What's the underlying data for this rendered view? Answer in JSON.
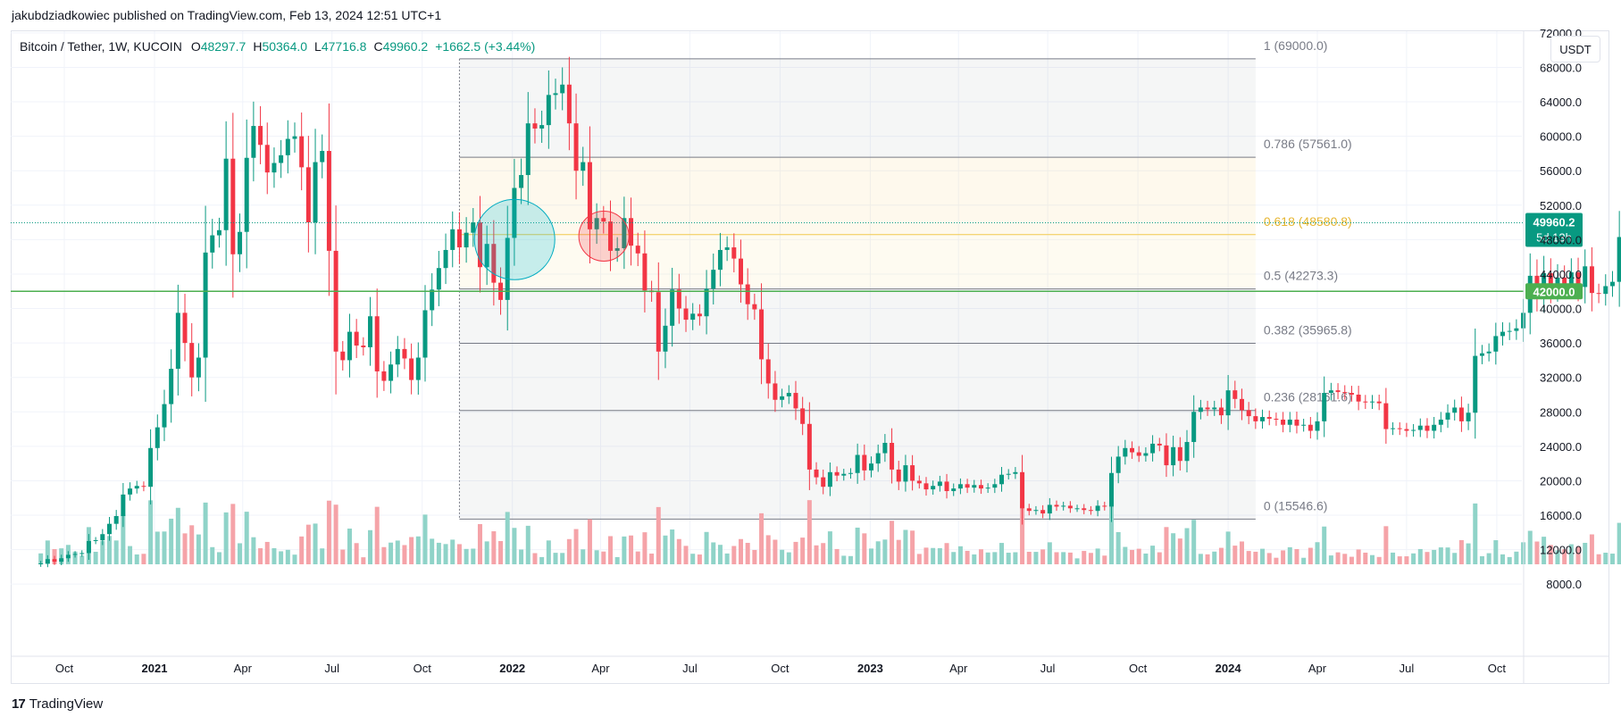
{
  "publisher_line": "jakubdziadkowiec published on TradingView.com, Feb 13, 2024 12:51 UTC+1",
  "legend": {
    "symbol": "Bitcoin / Tether, 1W, KUCOIN",
    "open_label": "O",
    "open": "48297.7",
    "high_label": "H",
    "high": "50364.0",
    "low_label": "L",
    "low": "47716.8",
    "close_label": "C",
    "close": "49960.2",
    "change": "+1662.5 (+3.44%)"
  },
  "currency_button": "USDT",
  "footer": {
    "brand": "TradingView",
    "icon": "tradingview-logo-icon"
  },
  "colors": {
    "up": "#089981",
    "down": "#f23645",
    "up_volume": "#8fd3c8",
    "down_volume": "#f5a3a8",
    "support": "#4caf50",
    "fib_618": "#f2c94c"
  },
  "chart_data": {
    "type": "candlestick",
    "ylim": [
      0,
      72000
    ],
    "y_ticks": [
      "8000.0",
      "12000.0",
      "16000.0",
      "20000.0",
      "24000.0",
      "28000.0",
      "32000.0",
      "36000.0",
      "40000.0",
      "44000.0",
      "48000.0",
      "52000.0",
      "56000.0",
      "60000.0",
      "64000.0",
      "68000.0",
      "72000.0"
    ],
    "x_ticks": [
      {
        "label": "Oct",
        "date": "2020-10-01",
        "bold": false
      },
      {
        "label": "2021",
        "date": "2021-01-01",
        "bold": true
      },
      {
        "label": "Apr",
        "date": "2021-04-01",
        "bold": false
      },
      {
        "label": "Jul",
        "date": "2021-07-01",
        "bold": false
      },
      {
        "label": "Oct",
        "date": "2021-10-01",
        "bold": false
      },
      {
        "label": "2022",
        "date": "2022-01-01",
        "bold": true
      },
      {
        "label": "Apr",
        "date": "2022-04-01",
        "bold": false
      },
      {
        "label": "Jul",
        "date": "2022-07-01",
        "bold": false
      },
      {
        "label": "Oct",
        "date": "2022-10-01",
        "bold": false
      },
      {
        "label": "2023",
        "date": "2023-01-01",
        "bold": true
      },
      {
        "label": "Apr",
        "date": "2023-04-01",
        "bold": false
      },
      {
        "label": "Jul",
        "date": "2023-07-01",
        "bold": false
      },
      {
        "label": "Oct",
        "date": "2023-10-01",
        "bold": false
      },
      {
        "label": "2024",
        "date": "2024-01-01",
        "bold": true
      },
      {
        "label": "Apr",
        "date": "2024-04-01",
        "bold": false
      },
      {
        "label": "Jul",
        "date": "2024-07-01",
        "bold": false
      },
      {
        "label": "Oct",
        "date": "2024-10-01",
        "bold": false
      }
    ],
    "start_date": "2020-09-07",
    "closes": [
      10400,
      10900,
      10600,
      11000,
      11400,
      11500,
      11600,
      13000,
      13100,
      13800,
      15000,
      15900,
      18400,
      19100,
      19400,
      19300,
      23800,
      26200,
      28900,
      33000,
      39500,
      36000,
      32000,
      34300,
      46500,
      48500,
      49100,
      57400,
      46300,
      48900,
      57500,
      61200,
      59000,
      55800,
      56900,
      57800,
      59700,
      60000,
      56400,
      50000,
      57000,
      58300,
      46700,
      35000,
      34000,
      37300,
      35700,
      35500,
      39100,
      32700,
      31600,
      33500,
      35300,
      34200,
      31700,
      34300,
      39800,
      42200,
      44700,
      46800,
      49200,
      47100,
      48800,
      50000,
      44800,
      47500,
      43000,
      41000,
      48200,
      54000,
      55500,
      61500,
      60900,
      61300,
      64800,
      65000,
      66000,
      61500,
      56000,
      57000,
      49200,
      50500,
      50100,
      46700,
      47000,
      50500,
      47300,
      46400,
      42100,
      41900,
      35000,
      38000,
      42200,
      40000,
      38700,
      39400,
      39100,
      42300,
      44500,
      46800,
      47100,
      45800,
      42800,
      40500,
      39900,
      34100,
      31300,
      29400,
      29800,
      30200,
      28400,
      26600,
      21300,
      20400,
      19300,
      21000,
      20600,
      20800,
      20900,
      23000,
      21200,
      22000,
      23200,
      24400,
      21300,
      19900,
      21800,
      20000,
      19700,
      19000,
      19400,
      19900,
      18800,
      19100,
      19600,
      19200,
      19500,
      19100,
      19200,
      19600,
      20700,
      20800,
      21000,
      16800,
      16500,
      16600,
      16200,
      17200,
      17000,
      17100,
      16800,
      16800,
      16600,
      16500,
      17100,
      17000,
      20900,
      22800,
      23800,
      23300,
      22900,
      23200,
      24300,
      24100,
      21800,
      23900,
      22300,
      24500,
      28000,
      28500,
      28300,
      28500,
      27600,
      30500,
      29500,
      28200,
      27500,
      26900,
      27400,
      27200,
      27100,
      26500,
      27100,
      26400,
      26500,
      25800,
      26900,
      30200,
      30500,
      30300,
      30200,
      30000,
      29200,
      29100,
      29200,
      29000,
      26000,
      26100,
      26000,
      25800,
      25900,
      26400,
      25800,
      26500,
      27100,
      27900,
      28500,
      26900,
      27900,
      34500,
      34800,
      35000,
      36800,
      37300,
      37400,
      37700,
      39500,
      43800,
      41500,
      44100,
      42300,
      43600,
      42700,
      44200,
      42500,
      44900,
      41800,
      41700,
      42600,
      43100,
      48300,
      49960
    ],
    "fib_levels": [
      {
        "ratio": "1",
        "value": 69000.0,
        "label": "1 (69000.0)",
        "highlight": false
      },
      {
        "ratio": "0.786",
        "value": 57561.0,
        "label": "0.786 (57561.0)",
        "highlight": false
      },
      {
        "ratio": "0.618",
        "value": 48580.8,
        "label": "0.618 (48580.8)",
        "highlight": true
      },
      {
        "ratio": "0.5",
        "value": 42273.3,
        "label": "0.5 (42273.3)",
        "highlight": false
      },
      {
        "ratio": "0.382",
        "value": 35965.8,
        "label": "0.382 (35965.8)",
        "highlight": false
      },
      {
        "ratio": "0.236",
        "value": 28161.6,
        "label": "0.236 (28161.6)",
        "highlight": false
      },
      {
        "ratio": "0",
        "value": 15546.6,
        "label": "0 (15546.6)",
        "highlight": false
      }
    ],
    "fib_start_date": "2021-11-08",
    "fib_end_date": "2024-01-29",
    "support_level": 42000.0,
    "support_label": "42000.0",
    "last_price": 49960.2,
    "last_price_label": "49960.2",
    "countdown": "5d 13h",
    "annotations": [
      {
        "type": "circle",
        "color": "cyan",
        "date": "2021-12-27",
        "value": 47800
      },
      {
        "type": "circle",
        "color": "red",
        "date": "2022-03-28",
        "value": 48200
      }
    ]
  }
}
